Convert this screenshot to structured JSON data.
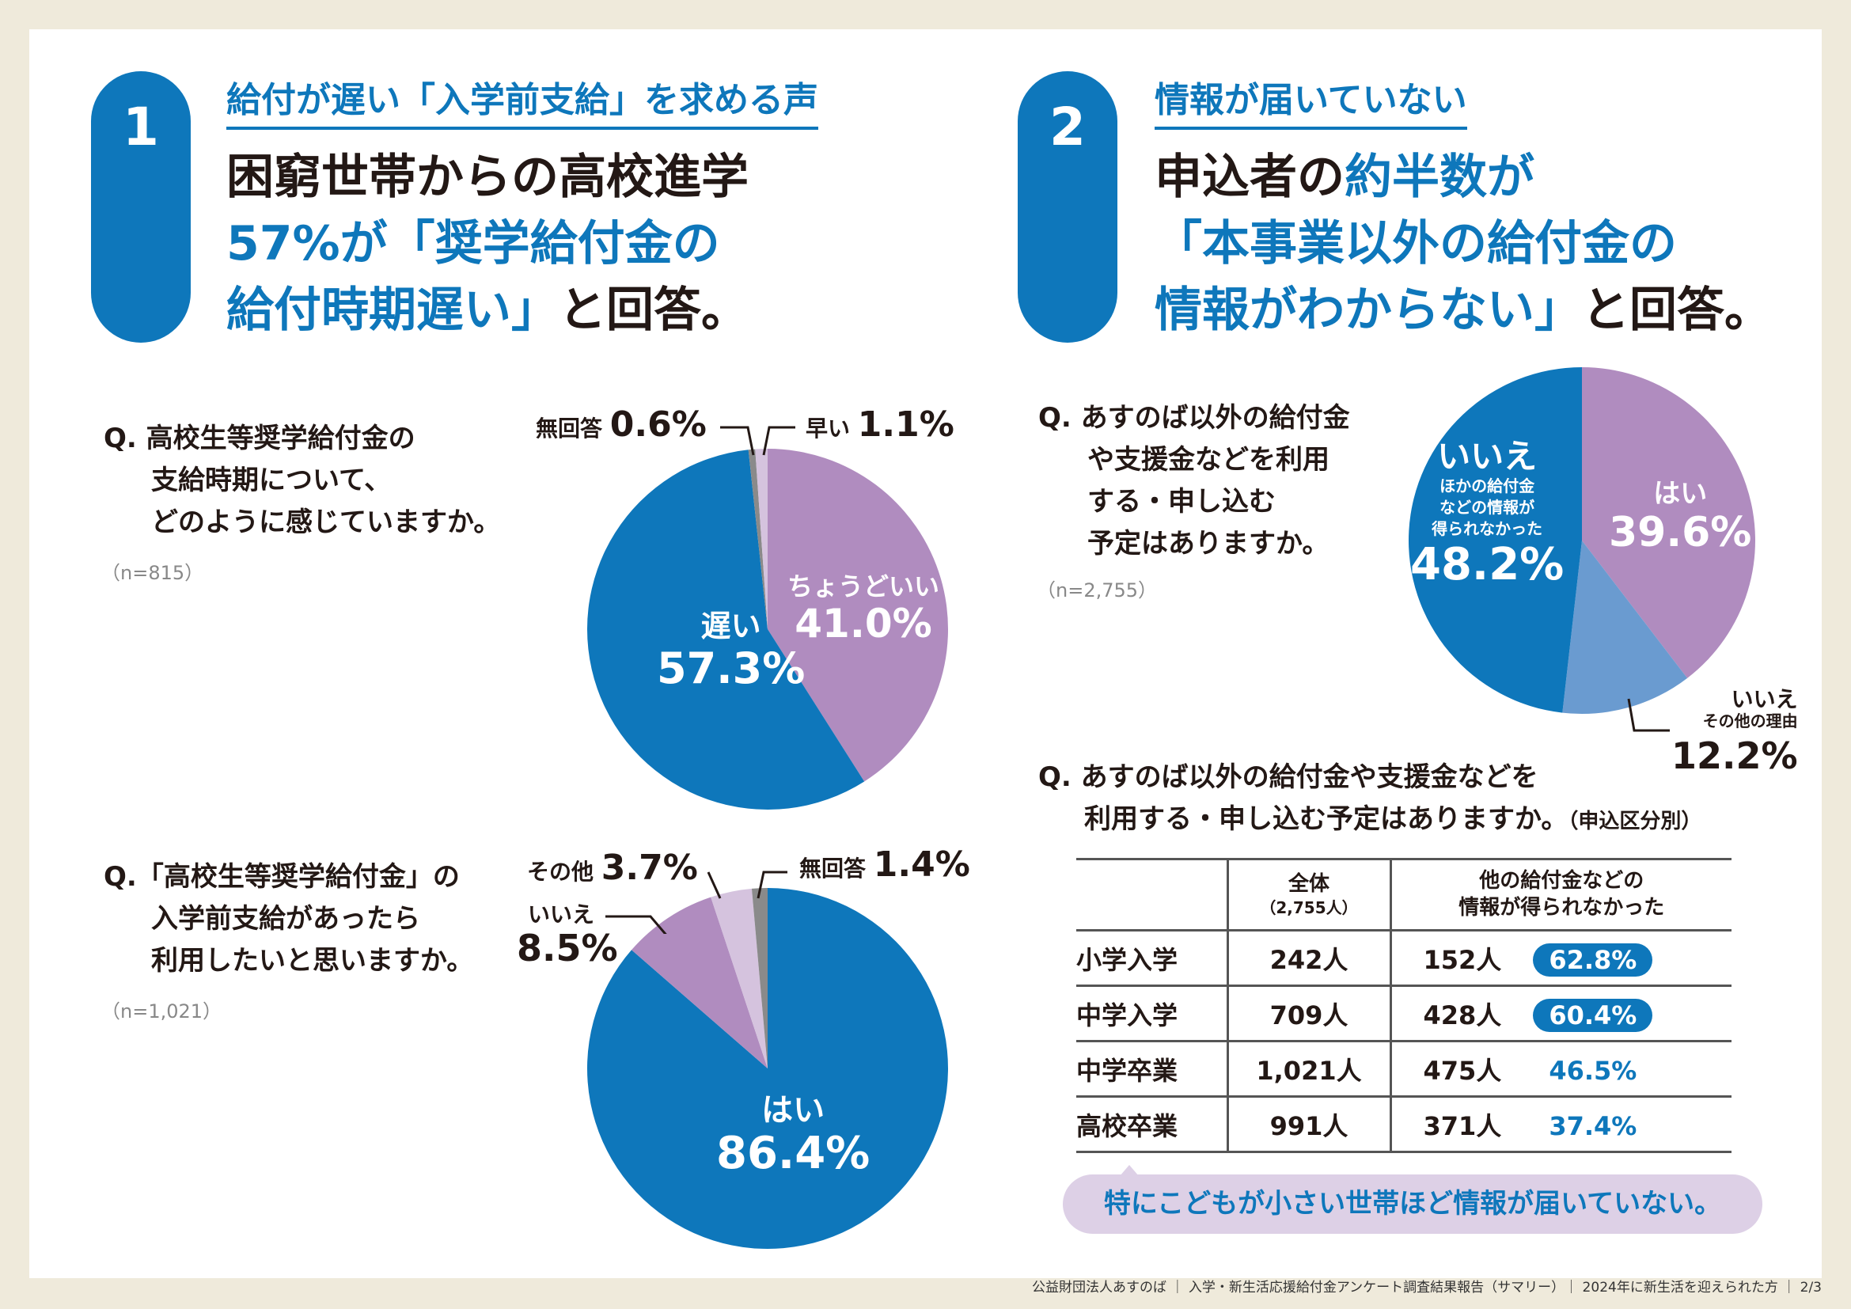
{
  "s1": {
    "num": "1",
    "subtitle": "給付が遅い「入学前支給」を求める声",
    "h1": "困窮世帯からの高校進学",
    "h2": "57%が「奨学給付金の",
    "h3a": "給付時期遅い」",
    "h3b": "と回答。"
  },
  "s2": {
    "num": "2",
    "subtitle": "情報が届いていない",
    "h1a": "申込者の",
    "h1b": "約半数が",
    "h2": "「本事業以外の給付金の",
    "h3a": "情報がわからない」",
    "h3b": "と回答。"
  },
  "q1": {
    "lines": [
      "Q. 高校生等奨学給付金の",
      "支給時期について、",
      "どのように感じていますか。"
    ],
    "n": "（n=815）"
  },
  "q2": {
    "lines": [
      "Q.「高校生等奨学給付金」の",
      "入学前支給があったら",
      "利用したいと思いますか。"
    ],
    "n": "（n=1,021）"
  },
  "q3": {
    "lines": [
      "Q. あすのば以外の給付金",
      "や支援金などを利用",
      "する・申し込む",
      "予定はありますか。"
    ],
    "n": "（n=2,755）"
  },
  "chart_data": [
    {
      "type": "pie",
      "title": "高校生等奨学給付金の支給時期について",
      "slices": [
        {
          "label": "ちょうどいい",
          "value": 41.0,
          "pct": "41.0%",
          "color": "#b08cbf"
        },
        {
          "label": "遅い",
          "value": 57.3,
          "pct": "57.3%",
          "color": "#0e77bb"
        },
        {
          "label": "無回答",
          "value": 0.6,
          "pct": "0.6%",
          "color": "#8a8a8a"
        },
        {
          "label": "早い",
          "value": 1.1,
          "pct": "1.1%",
          "color": "#d5c3de"
        }
      ]
    },
    {
      "type": "pie",
      "title": "入学前支給があったら利用したいか",
      "slices": [
        {
          "label": "はい",
          "value": 86.4,
          "pct": "86.4%",
          "color": "#0e77bb"
        },
        {
          "label": "いいえ",
          "value": 8.5,
          "pct": "8.5%",
          "color": "#b08cbf"
        },
        {
          "label": "その他",
          "value": 3.7,
          "pct": "3.7%",
          "color": "#d5c3de"
        },
        {
          "label": "無回答",
          "value": 1.4,
          "pct": "1.4%",
          "color": "#8a8a8a"
        }
      ]
    },
    {
      "type": "pie",
      "title": "あすのば以外の給付金等を利用する予定",
      "slices": [
        {
          "label": "はい",
          "value": 39.6,
          "pct": "39.6%",
          "color": "#b08cbf"
        },
        {
          "label": "いいえ",
          "sub": "その他の理由",
          "value": 12.2,
          "pct": "12.2%",
          "color": "#6a9bd0"
        },
        {
          "label": "いいえ",
          "sub": "ほかの給付金などの情報が得られなかった",
          "sub_lines": [
            "ほかの給付金",
            "などの情報が",
            "得られなかった"
          ],
          "value": 48.2,
          "pct": "48.2%",
          "color": "#0e77bb"
        }
      ]
    }
  ],
  "q4": {
    "line1": "Q. あすのば以外の給付金や支援金などを",
    "line2": "利用する・申し込む予定はありますか。",
    "suffix": "（申込区分別）"
  },
  "table": {
    "headers": [
      {
        "a": "",
        "b": ""
      },
      {
        "a": "全体",
        "b": "（2,755人）"
      },
      {
        "a": "他の給付金などの",
        "b": "情報が得られなかった"
      }
    ],
    "rows": [
      {
        "label": "小学入学",
        "total": "242人",
        "count": "152人",
        "pct": "62.8%",
        "hl": true
      },
      {
        "label": "中学入学",
        "total": "709人",
        "count": "428人",
        "pct": "60.4%",
        "hl": true
      },
      {
        "label": "中学卒業",
        "total": "1,021人",
        "count": "475人",
        "pct": "46.5%",
        "hl": false
      },
      {
        "label": "高校卒業",
        "total": "991人",
        "count": "371人",
        "pct": "37.4%",
        "hl": false
      }
    ]
  },
  "callout": "特にこどもが小さい世帯ほど情報が届いていない。",
  "footer": "公益財団法人あすのば ｜ 入学・新生活応援給付金アンケート調査結果報告（サマリー）｜ 2024年に新生活を迎えられた方 ｜ 2/3"
}
